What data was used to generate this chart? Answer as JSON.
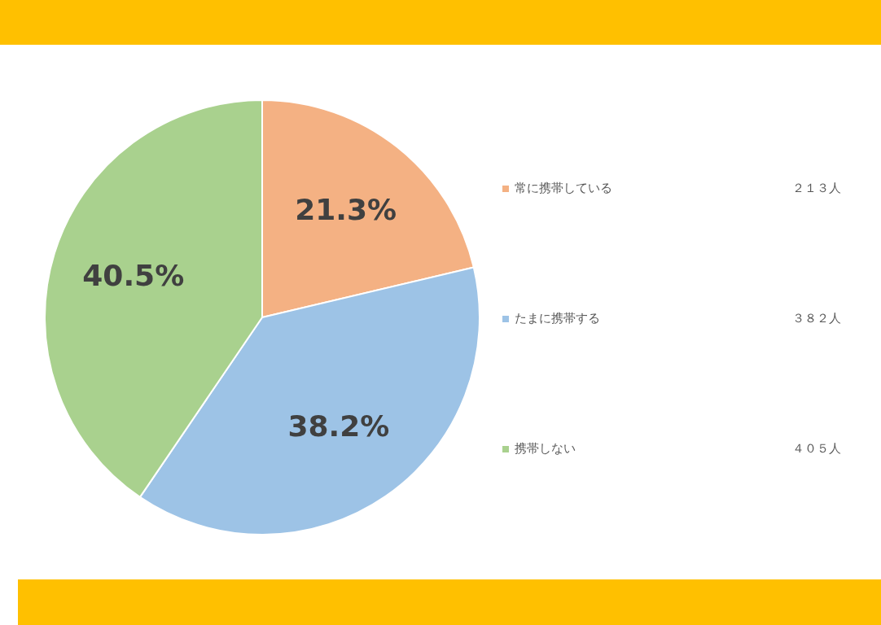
{
  "chart_data": {
    "type": "pie",
    "categories": [
      "常に携帯している",
      "たまに携帯する",
      "携帯しない"
    ],
    "values": [
      21.3,
      38.2,
      40.5
    ],
    "colors": [
      "#f4b183",
      "#9dc3e6",
      "#a9d18e"
    ],
    "value_labels": [
      "21.3%",
      "38.2%",
      "40.5%"
    ],
    "annotations": [
      "２１３人",
      "３８２人",
      "４０５人"
    ],
    "legend": "right"
  }
}
